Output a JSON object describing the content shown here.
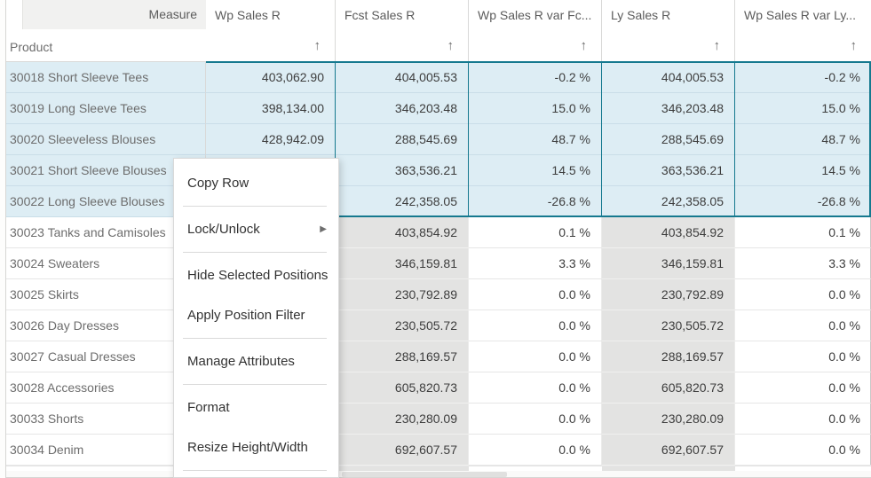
{
  "header": {
    "corner_top_label": "Measure",
    "corner_bottom_label": "Product",
    "columns": [
      {
        "label": "Wp Sales R",
        "sort_icon": "sort-ascending-arrow"
      },
      {
        "label": "Fcst Sales R",
        "sort_icon": "sort-ascending-arrow"
      },
      {
        "label": "Wp Sales R var Fc...",
        "sort_icon": "sort-ascending-arrow"
      },
      {
        "label": "Ly Sales R",
        "sort_icon": "sort-ascending-arrow"
      },
      {
        "label": "Wp Sales R var Ly...",
        "sort_icon": "sort-ascending-arrow"
      }
    ]
  },
  "rows": [
    {
      "product": "30018 Short Sleeve Tees",
      "wp": "403,062.90",
      "fcst": "404,005.53",
      "var_fcst": "-0.2 %",
      "ly": "404,005.53",
      "var_ly": "-0.2 %",
      "selected": true
    },
    {
      "product": "30019 Long Sleeve Tees",
      "wp": "398,134.00",
      "fcst": "346,203.48",
      "var_fcst": "15.0 %",
      "ly": "346,203.48",
      "var_ly": "15.0 %",
      "selected": true
    },
    {
      "product": "30020 Sleeveless Blouses",
      "wp": "428,942.09",
      "fcst": "288,545.69",
      "var_fcst": "48.7 %",
      "ly": "288,545.69",
      "var_ly": "48.7 %",
      "selected": true
    },
    {
      "product": "30021 Short Sleeve Blouses",
      "wp": "",
      "fcst": "363,536.21",
      "var_fcst": "14.5 %",
      "ly": "363,536.21",
      "var_ly": "14.5 %",
      "selected": true
    },
    {
      "product": "30022 Long Sleeve Blouses",
      "wp": "",
      "fcst": "242,358.05",
      "var_fcst": "-26.8 %",
      "ly": "242,358.05",
      "var_ly": "-26.8 %",
      "selected": true
    },
    {
      "product": "30023 Tanks and Camisoles",
      "wp": "",
      "fcst": "403,854.92",
      "var_fcst": "0.1 %",
      "ly": "403,854.92",
      "var_ly": "0.1 %",
      "selected": false
    },
    {
      "product": "30024 Sweaters",
      "wp": "",
      "fcst": "346,159.81",
      "var_fcst": "3.3 %",
      "ly": "346,159.81",
      "var_ly": "3.3 %",
      "selected": false
    },
    {
      "product": "30025 Skirts",
      "wp": "",
      "fcst": "230,792.89",
      "var_fcst": "0.0 %",
      "ly": "230,792.89",
      "var_ly": "0.0 %",
      "selected": false
    },
    {
      "product": "30026 Day Dresses",
      "wp": "",
      "fcst": "230,505.72",
      "var_fcst": "0.0 %",
      "ly": "230,505.72",
      "var_ly": "0.0 %",
      "selected": false
    },
    {
      "product": "30027 Casual Dresses",
      "wp": "",
      "fcst": "288,169.57",
      "var_fcst": "0.0 %",
      "ly": "288,169.57",
      "var_ly": "0.0 %",
      "selected": false
    },
    {
      "product": "30028 Accessories",
      "wp": "",
      "fcst": "605,820.73",
      "var_fcst": "0.0 %",
      "ly": "605,820.73",
      "var_ly": "0.0 %",
      "selected": false
    },
    {
      "product": "30033 Shorts",
      "wp": "",
      "fcst": "230,280.09",
      "var_fcst": "0.0 %",
      "ly": "230,280.09",
      "var_ly": "0.0 %",
      "selected": false
    },
    {
      "product": "30034 Denim",
      "wp": "",
      "fcst": "692,607.57",
      "var_fcst": "0.0 %",
      "ly": "692,607.57",
      "var_ly": "0.0 %",
      "selected": false
    }
  ],
  "context_menu": {
    "items": [
      {
        "label": "Copy Row",
        "has_submenu": false,
        "divider_after": true
      },
      {
        "label": "Lock/Unlock",
        "has_submenu": true,
        "divider_after": true
      },
      {
        "label": "Hide Selected Positions",
        "has_submenu": false,
        "divider_after": false
      },
      {
        "label": "Apply Position Filter",
        "has_submenu": false,
        "divider_after": true
      },
      {
        "label": "Manage Attributes",
        "has_submenu": false,
        "divider_after": true
      },
      {
        "label": "Format",
        "has_submenu": false,
        "divider_after": false
      },
      {
        "label": "Resize Height/Width",
        "has_submenu": false,
        "divider_after": true
      }
    ]
  },
  "icons": {
    "sort_ascending": "↑",
    "submenu_arrow": "▶"
  },
  "colors": {
    "selection_border": "#15798f",
    "selection_bg": "#ddedf4",
    "readonly_cell_bg": "#e3e3e2",
    "header_bg": "#f1f1f0"
  }
}
